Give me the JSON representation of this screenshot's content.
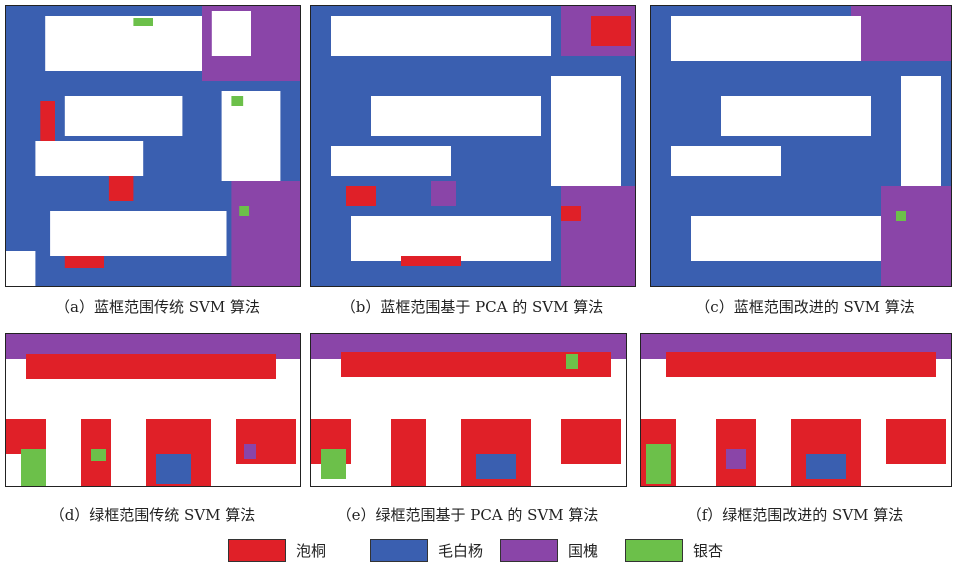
{
  "captions": {
    "a": "（a）蓝框范围传统 SVM 算法",
    "b": "（b）蓝框范围基于 PCA 的 SVM 算法",
    "c": "（c）蓝框范围改进的 SVM 算法",
    "d": "（d）绿框范围传统 SVM 算法",
    "e": "（e）绿框范围基于 PCA 的 SVM 算法",
    "f": "（f）绿框范围改进的 SVM 算法"
  },
  "legend": [
    {
      "label": "泡桐",
      "color": "#e02028"
    },
    {
      "label": "毛白杨",
      "color": "#3a5fb0"
    },
    {
      "label": "国槐",
      "color": "#8a45a8"
    },
    {
      "label": "银杏",
      "color": "#6cc04a"
    }
  ]
}
